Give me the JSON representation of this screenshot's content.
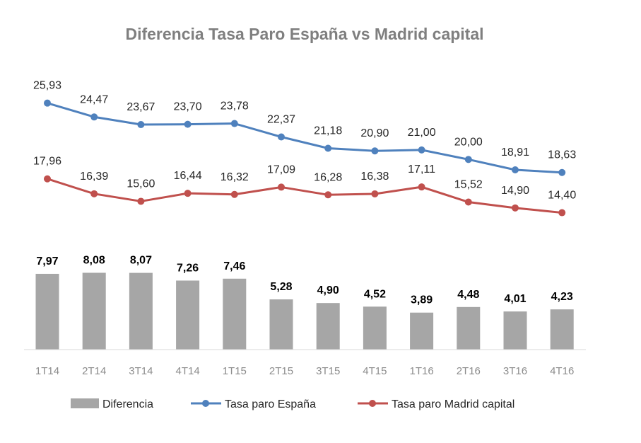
{
  "chart_data": {
    "type": "bar+line",
    "title": "Diferencia Tasa Paro España vs Madrid capital",
    "categories": [
      "1T14",
      "2T14",
      "3T14",
      "4T14",
      "1T15",
      "2T15",
      "3T15",
      "4T15",
      "1T16",
      "2T16",
      "3T16",
      "4T16"
    ],
    "series": [
      {
        "name": "Diferencia",
        "type": "bar",
        "color": "#a6a6a6",
        "values": [
          7.97,
          8.08,
          8.07,
          7.26,
          7.46,
          5.28,
          4.9,
          4.52,
          3.89,
          4.48,
          4.01,
          4.23
        ],
        "labels": [
          "7,97",
          "8,08",
          "8,07",
          "7,26",
          "7,46",
          "5,28",
          "4,90",
          "4,52",
          "3,89",
          "4,48",
          "4,01",
          "4,23"
        ]
      },
      {
        "name": "Tasa paro España",
        "type": "line",
        "color": "#4f81bd",
        "values": [
          25.93,
          24.47,
          23.67,
          23.7,
          23.78,
          22.37,
          21.18,
          20.9,
          21.0,
          20.0,
          18.91,
          18.63
        ],
        "labels": [
          "25,93",
          "24,47",
          "23,67",
          "23,70",
          "23,78",
          "22,37",
          "21,18",
          "20,90",
          "21,00",
          "20,00",
          "18,91",
          "18,63"
        ]
      },
      {
        "name": "Tasa paro Madrid capital",
        "type": "line",
        "color": "#c0504d",
        "values": [
          17.96,
          16.39,
          15.6,
          16.44,
          16.32,
          17.09,
          16.28,
          16.38,
          17.11,
          15.52,
          14.9,
          14.4
        ],
        "labels": [
          "17,96",
          "16,39",
          "15,60",
          "16,44",
          "16,32",
          "17,09",
          "16,28",
          "16,38",
          "17,11",
          "15,52",
          "14,90",
          "14,40"
        ]
      }
    ],
    "ylim": [
      0,
      30
    ],
    "grid": false,
    "y_axis_visible": false,
    "legend": "bottom"
  }
}
